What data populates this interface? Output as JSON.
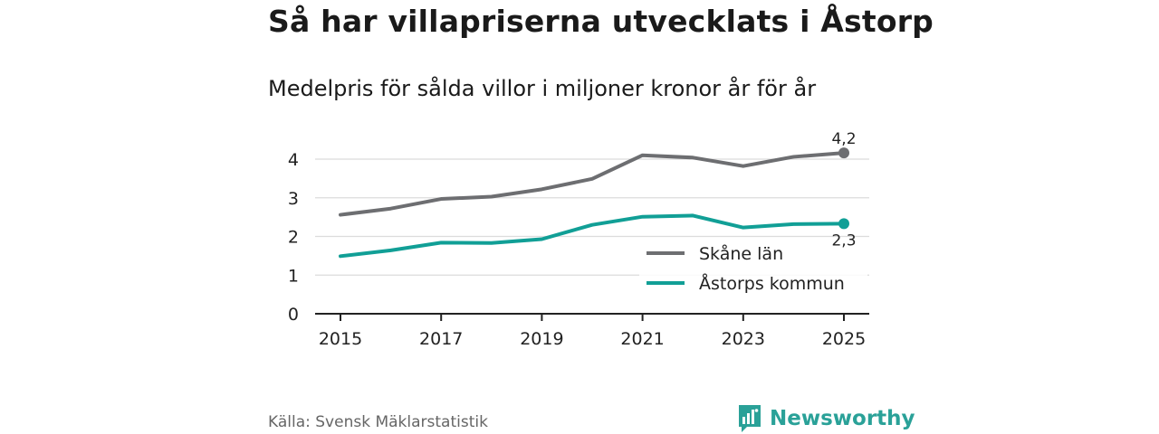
{
  "title": "Så har villapriserna utvecklats i Åstorp",
  "subtitle": "Medelpris för sålda villor i miljoner kronor år för år",
  "source": "Källa: Svensk Mäklarstatistik",
  "brand": {
    "name": "Newsworthy",
    "icon": "newsworthy-logo-icon",
    "color": "#2aa198"
  },
  "chart_data": {
    "type": "line",
    "title": "Så har villapriserna utvecklats i Åstorp",
    "subtitle": "Medelpris för sålda villor i miljoner kronor år för år",
    "xlabel": "",
    "ylabel": "",
    "x": [
      2015,
      2016,
      2017,
      2018,
      2019,
      2020,
      2021,
      2022,
      2023,
      2024,
      2025
    ],
    "x_ticks": [
      "2015",
      "2017",
      "2019",
      "2021",
      "2023",
      "2025"
    ],
    "y_ticks": [
      "0",
      "1",
      "2",
      "3",
      "4"
    ],
    "ylim": [
      0,
      4.5
    ],
    "grid": true,
    "legend": "bottom-right",
    "series": [
      {
        "name": "Skåne län",
        "color": "#6d6e71",
        "values": [
          2.56,
          2.72,
          2.97,
          3.03,
          3.22,
          3.49,
          4.1,
          4.04,
          3.82,
          4.06,
          4.16
        ],
        "end_label": "4,2"
      },
      {
        "name": "Åstorps kommun",
        "color": "#119f96",
        "values": [
          1.49,
          1.64,
          1.84,
          1.83,
          1.93,
          2.3,
          2.51,
          2.54,
          2.23,
          2.32,
          2.33
        ],
        "end_label": "2,3"
      }
    ]
  }
}
